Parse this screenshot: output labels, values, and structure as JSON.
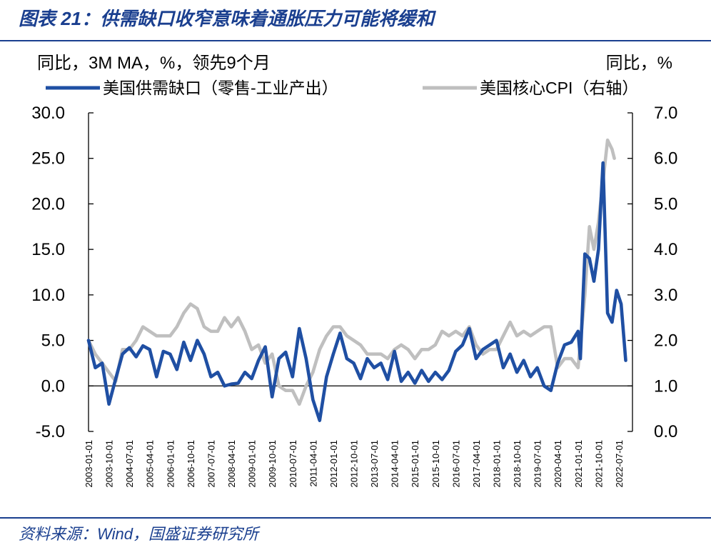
{
  "figure": {
    "title": "图表 21：供需缺口收窄意味着通胀压力可能将缓和",
    "source": "资料来源：Wind，国盛证券研究所"
  },
  "colors": {
    "accent": "#1a3f8f",
    "series_gap": "#1f4fa3",
    "series_cpi": "#bfbfbf",
    "axis": "#000000"
  },
  "chart_data": {
    "type": "line",
    "left_unit_label": "同比，3M MA，%，领先9个月",
    "right_unit_label": "同比，%",
    "y_left": {
      "min": -5,
      "max": 30,
      "ticks": [
        -5,
        0,
        5,
        10,
        15,
        20,
        25,
        30
      ],
      "tick_labels": [
        "-5.0",
        "0.0",
        "5.0",
        "10.0",
        "15.0",
        "20.0",
        "25.0",
        "30.0"
      ]
    },
    "y_right": {
      "min": 0,
      "max": 7,
      "ticks": [
        0,
        1,
        2,
        3,
        4,
        5,
        6,
        7
      ],
      "tick_labels": [
        "0.0",
        "1.0",
        "2.0",
        "3.0",
        "4.0",
        "5.0",
        "6.0",
        "7.0"
      ]
    },
    "x_range": [
      "2003-01",
      "2023-01"
    ],
    "x_tick_labels": [
      "2003-01-01",
      "2003-10-01",
      "2004-07-01",
      "2005-04-01",
      "2006-01-01",
      "2006-10-01",
      "2007-07-01",
      "2008-04-01",
      "2009-01-01",
      "2009-10-01",
      "2010-07-01",
      "2011-04-01",
      "2012-01-01",
      "2012-10-01",
      "2013-07-01",
      "2014-04-01",
      "2015-01-01",
      "2015-10-01",
      "2016-07-01",
      "2017-04-01",
      "2018-01-01",
      "2018-10-01",
      "2019-07-01",
      "2020-04-01",
      "2021-01-01",
      "2021-10-01",
      "2022-07-01"
    ],
    "series": [
      {
        "name": "美国供需缺口（零售-工业产出）",
        "axis": "left",
        "points": [
          [
            "2003-01",
            5.0
          ],
          [
            "2003-04",
            2.0
          ],
          [
            "2003-07",
            2.5
          ],
          [
            "2003-10",
            -2.0
          ],
          [
            "2004-01",
            0.8
          ],
          [
            "2004-04",
            3.5
          ],
          [
            "2004-07",
            4.2
          ],
          [
            "2004-10",
            3.2
          ],
          [
            "2005-01",
            4.4
          ],
          [
            "2005-04",
            4.0
          ],
          [
            "2005-07",
            1.0
          ],
          [
            "2005-10",
            3.8
          ],
          [
            "2006-01",
            3.5
          ],
          [
            "2006-04",
            1.8
          ],
          [
            "2006-07",
            4.8
          ],
          [
            "2006-10",
            2.8
          ],
          [
            "2007-01",
            5.0
          ],
          [
            "2007-04",
            3.5
          ],
          [
            "2007-07",
            1.0
          ],
          [
            "2007-10",
            1.5
          ],
          [
            "2008-01",
            0.0
          ],
          [
            "2008-04",
            0.2
          ],
          [
            "2008-07",
            0.3
          ],
          [
            "2008-10",
            1.5
          ],
          [
            "2009-01",
            0.8
          ],
          [
            "2009-04",
            2.8
          ],
          [
            "2009-07",
            4.3
          ],
          [
            "2009-10",
            -1.2
          ],
          [
            "2010-01",
            3.0
          ],
          [
            "2010-04",
            3.7
          ],
          [
            "2010-07",
            1.0
          ],
          [
            "2010-10",
            6.3
          ],
          [
            "2011-01",
            3.0
          ],
          [
            "2011-04",
            -1.5
          ],
          [
            "2011-07",
            -3.8
          ],
          [
            "2011-10",
            1.0
          ],
          [
            "2012-01",
            3.5
          ],
          [
            "2012-04",
            5.8
          ],
          [
            "2012-07",
            3.0
          ],
          [
            "2012-10",
            2.5
          ],
          [
            "2013-01",
            0.8
          ],
          [
            "2013-04",
            3.0
          ],
          [
            "2013-07",
            2.0
          ],
          [
            "2013-10",
            2.5
          ],
          [
            "2014-01",
            0.7
          ],
          [
            "2014-04",
            3.8
          ],
          [
            "2014-07",
            0.5
          ],
          [
            "2014-10",
            1.5
          ],
          [
            "2015-01",
            0.3
          ],
          [
            "2015-04",
            1.7
          ],
          [
            "2015-07",
            0.5
          ],
          [
            "2015-10",
            1.5
          ],
          [
            "2016-01",
            0.7
          ],
          [
            "2016-04",
            1.7
          ],
          [
            "2016-07",
            3.8
          ],
          [
            "2016-10",
            4.5
          ],
          [
            "2017-01",
            6.3
          ],
          [
            "2017-04",
            3.0
          ],
          [
            "2017-07",
            4.0
          ],
          [
            "2017-10",
            4.5
          ],
          [
            "2018-01",
            5.0
          ],
          [
            "2018-04",
            2.0
          ],
          [
            "2018-07",
            3.5
          ],
          [
            "2018-10",
            1.5
          ],
          [
            "2019-01",
            2.8
          ],
          [
            "2019-04",
            1.0
          ],
          [
            "2019-07",
            2.0
          ],
          [
            "2019-10",
            0.0
          ],
          [
            "2020-01",
            -0.5
          ],
          [
            "2020-04",
            2.5
          ],
          [
            "2020-07",
            4.5
          ],
          [
            "2020-10",
            4.8
          ],
          [
            "2021-01",
            6.0
          ],
          [
            "2021-02",
            3.0
          ],
          [
            "2021-04",
            14.5
          ],
          [
            "2021-06",
            14.0
          ],
          [
            "2021-08",
            11.5
          ],
          [
            "2021-10",
            15.0
          ],
          [
            "2021-12",
            24.5
          ],
          [
            "2022-02",
            8.0
          ],
          [
            "2022-04",
            7.0
          ],
          [
            "2022-06",
            10.5
          ],
          [
            "2022-08",
            9.0
          ],
          [
            "2022-10",
            2.8
          ]
        ]
      },
      {
        "name": "美国核心CPI（右轴）",
        "axis": "right",
        "points": [
          [
            "2003-01",
            2.0
          ],
          [
            "2003-04",
            1.7
          ],
          [
            "2003-07",
            1.5
          ],
          [
            "2003-10",
            1.3
          ],
          [
            "2004-01",
            1.1
          ],
          [
            "2004-04",
            1.8
          ],
          [
            "2004-07",
            1.8
          ],
          [
            "2004-10",
            2.0
          ],
          [
            "2005-01",
            2.3
          ],
          [
            "2005-04",
            2.2
          ],
          [
            "2005-07",
            2.1
          ],
          [
            "2005-10",
            2.1
          ],
          [
            "2006-01",
            2.1
          ],
          [
            "2006-04",
            2.3
          ],
          [
            "2006-07",
            2.6
          ],
          [
            "2006-10",
            2.8
          ],
          [
            "2007-01",
            2.7
          ],
          [
            "2007-04",
            2.3
          ],
          [
            "2007-07",
            2.2
          ],
          [
            "2007-10",
            2.2
          ],
          [
            "2008-01",
            2.5
          ],
          [
            "2008-04",
            2.3
          ],
          [
            "2008-07",
            2.5
          ],
          [
            "2008-10",
            2.2
          ],
          [
            "2009-01",
            1.8
          ],
          [
            "2009-04",
            1.9
          ],
          [
            "2009-07",
            1.5
          ],
          [
            "2009-10",
            1.7
          ],
          [
            "2010-01",
            1.0
          ],
          [
            "2010-04",
            0.9
          ],
          [
            "2010-07",
            0.9
          ],
          [
            "2010-10",
            0.6
          ],
          [
            "2011-01",
            1.0
          ],
          [
            "2011-04",
            1.3
          ],
          [
            "2011-07",
            1.8
          ],
          [
            "2011-10",
            2.1
          ],
          [
            "2012-01",
            2.3
          ],
          [
            "2012-04",
            2.3
          ],
          [
            "2012-07",
            2.1
          ],
          [
            "2012-10",
            2.0
          ],
          [
            "2013-01",
            1.9
          ],
          [
            "2013-04",
            1.7
          ],
          [
            "2013-07",
            1.7
          ],
          [
            "2013-10",
            1.7
          ],
          [
            "2014-01",
            1.6
          ],
          [
            "2014-04",
            1.8
          ],
          [
            "2014-07",
            1.9
          ],
          [
            "2014-10",
            1.8
          ],
          [
            "2015-01",
            1.6
          ],
          [
            "2015-04",
            1.8
          ],
          [
            "2015-07",
            1.8
          ],
          [
            "2015-10",
            1.9
          ],
          [
            "2016-01",
            2.2
          ],
          [
            "2016-04",
            2.1
          ],
          [
            "2016-07",
            2.2
          ],
          [
            "2016-10",
            2.1
          ],
          [
            "2017-01",
            2.3
          ],
          [
            "2017-04",
            1.9
          ],
          [
            "2017-07",
            1.7
          ],
          [
            "2017-10",
            1.8
          ],
          [
            "2018-01",
            1.8
          ],
          [
            "2018-04",
            2.1
          ],
          [
            "2018-07",
            2.4
          ],
          [
            "2018-10",
            2.1
          ],
          [
            "2019-01",
            2.2
          ],
          [
            "2019-04",
            2.1
          ],
          [
            "2019-07",
            2.2
          ],
          [
            "2019-10",
            2.3
          ],
          [
            "2020-01",
            2.3
          ],
          [
            "2020-04",
            1.4
          ],
          [
            "2020-07",
            1.6
          ],
          [
            "2020-10",
            1.6
          ],
          [
            "2021-01",
            1.4
          ],
          [
            "2021-04",
            3.0
          ],
          [
            "2021-06",
            4.5
          ],
          [
            "2021-08",
            4.0
          ],
          [
            "2021-10",
            4.6
          ],
          [
            "2021-12",
            5.5
          ],
          [
            "2022-02",
            6.4
          ],
          [
            "2022-04",
            6.2
          ],
          [
            "2022-05",
            6.0
          ]
        ]
      }
    ]
  }
}
